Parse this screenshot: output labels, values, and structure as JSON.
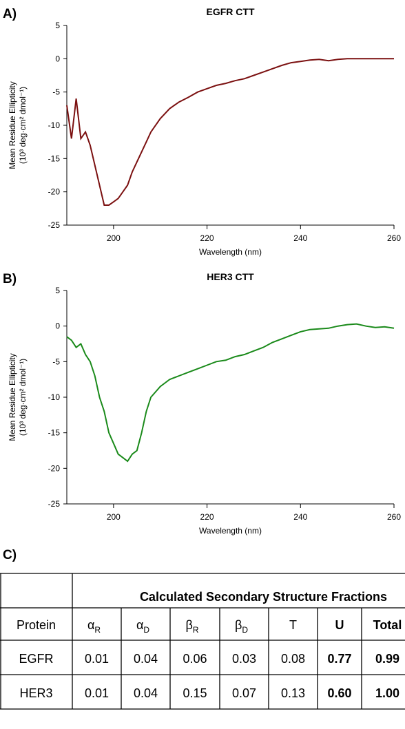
{
  "chart_data": [
    {
      "type": "line",
      "panel": "A)",
      "title": "EGFR CTT",
      "x_label": "Wavelength (nm)",
      "y_label": [
        "Mean Residue Ellipticity",
        "(10³ deg·cm² dmol⁻¹)"
      ],
      "color": "#7b1010",
      "x": [
        190,
        191,
        192,
        193,
        194,
        195,
        196,
        197,
        198,
        199,
        200,
        201,
        202,
        203,
        204,
        205,
        206,
        207,
        208,
        210,
        212,
        214,
        216,
        218,
        220,
        222,
        224,
        226,
        228,
        230,
        232,
        234,
        236,
        238,
        240,
        242,
        244,
        246,
        248,
        250,
        252,
        254,
        256,
        258,
        260
      ],
      "values": [
        -7,
        -12,
        -6,
        -12,
        -11,
        -13,
        -16,
        -19,
        -22,
        -22,
        -21.5,
        -21,
        -20,
        -19,
        -17,
        -15.5,
        -14,
        -12.5,
        -11,
        -9,
        -7.5,
        -6.5,
        -5.8,
        -5,
        -4.5,
        -4,
        -3.7,
        -3.3,
        -3,
        -2.5,
        -2,
        -1.5,
        -1,
        -0.6,
        -0.4,
        -0.2,
        -0.1,
        -0.3,
        -0.1,
        0,
        0,
        0,
        0,
        0,
        0
      ],
      "xlim": [
        190,
        260
      ],
      "xticks": [
        200,
        220,
        240,
        260
      ],
      "ylim": [
        -25,
        5
      ],
      "yticks": [
        -25,
        -20,
        -15,
        -10,
        -5,
        0,
        5
      ]
    },
    {
      "type": "line",
      "panel": "B)",
      "title": "HER3 CTT",
      "x_label": "Wavelength (nm)",
      "y_label": [
        "Mean Residue Ellipticity",
        "(10³ deg·cm² dmol⁻¹)"
      ],
      "color": "#1a8a1a",
      "x": [
        190,
        191,
        192,
        193,
        194,
        195,
        196,
        197,
        198,
        199,
        200,
        201,
        202,
        203,
        204,
        205,
        206,
        207,
        208,
        210,
        212,
        214,
        216,
        218,
        220,
        222,
        224,
        226,
        228,
        230,
        232,
        234,
        236,
        238,
        240,
        242,
        244,
        246,
        248,
        250,
        252,
        254,
        256,
        258,
        260
      ],
      "values": [
        -1.5,
        -2,
        -3,
        -2.5,
        -4,
        -5,
        -7,
        -10,
        -12,
        -15,
        -16.5,
        -18,
        -18.5,
        -19,
        -18,
        -17.5,
        -15,
        -12,
        -10,
        -8.5,
        -7.5,
        -7,
        -6.5,
        -6,
        -5.5,
        -5,
        -4.8,
        -4.3,
        -4,
        -3.5,
        -3,
        -2.3,
        -1.8,
        -1.3,
        -0.8,
        -0.5,
        -0.4,
        -0.3,
        0,
        0.2,
        0.3,
        0,
        -0.2,
        -0.1,
        -0.3
      ],
      "xlim": [
        190,
        260
      ],
      "xticks": [
        200,
        220,
        240,
        260
      ],
      "ylim": [
        -25,
        5
      ],
      "yticks": [
        -25,
        -20,
        -15,
        -10,
        -5,
        0,
        5
      ]
    }
  ],
  "table": {
    "panel": "C)",
    "group_header": "Calculated Secondary Structure Fractions",
    "columns": [
      "Protein",
      {
        "text": "α",
        "sub": "R"
      },
      {
        "text": "α",
        "sub": "D"
      },
      {
        "text": "β",
        "sub": "R"
      },
      {
        "text": "β",
        "sub": "D"
      },
      "T",
      "U",
      "Total"
    ],
    "bold_columns": [
      6,
      7
    ],
    "rows": [
      [
        "EGFR",
        "0.01",
        "0.04",
        "0.06",
        "0.03",
        "0.08",
        "0.77",
        "0.99"
      ],
      [
        "HER3",
        "0.01",
        "0.04",
        "0.15",
        "0.07",
        "0.13",
        "0.60",
        "1.00"
      ]
    ]
  }
}
